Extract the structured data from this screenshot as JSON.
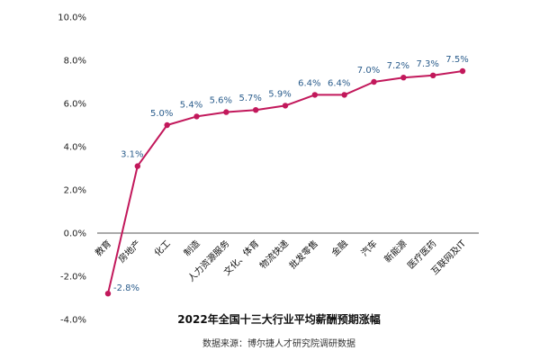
{
  "chart_data": {
    "type": "line",
    "title": "2022年全国十三大行业平均薪酬预期涨幅",
    "source": "数据来源：博尔捷人才研究院调研数据",
    "categories": [
      "教育",
      "房地产",
      "化工",
      "制造",
      "人力资源服务",
      "文化、体育",
      "物流快递",
      "批发零售",
      "金融",
      "汽车",
      "新能源",
      "医疗医药",
      "互联网及IT"
    ],
    "values": [
      -2.8,
      3.1,
      5.0,
      5.4,
      5.6,
      5.7,
      5.9,
      6.4,
      6.4,
      7.0,
      7.2,
      7.3,
      7.5
    ],
    "data_labels": [
      "",
      "3.1%",
      "5.0%",
      "5.4%",
      "5.6%",
      "5.7%",
      "5.9%",
      "6.4%",
      "6.4%",
      "7.0%",
      "7.2%",
      "7.3%",
      "7.5%"
    ],
    "extra_label": "-2.8%",
    "yticks": [
      "10.0%",
      "8.0%",
      "6.0%",
      "4.0%",
      "2.0%",
      "0.0%",
      "-2.0%",
      "-4.0%"
    ],
    "ylim": [
      -4,
      10
    ],
    "grid": false,
    "colors": {
      "line": "#c2185b",
      "marker": "#c2185b",
      "label": "#2b5d8c",
      "axis": "#555555"
    }
  }
}
